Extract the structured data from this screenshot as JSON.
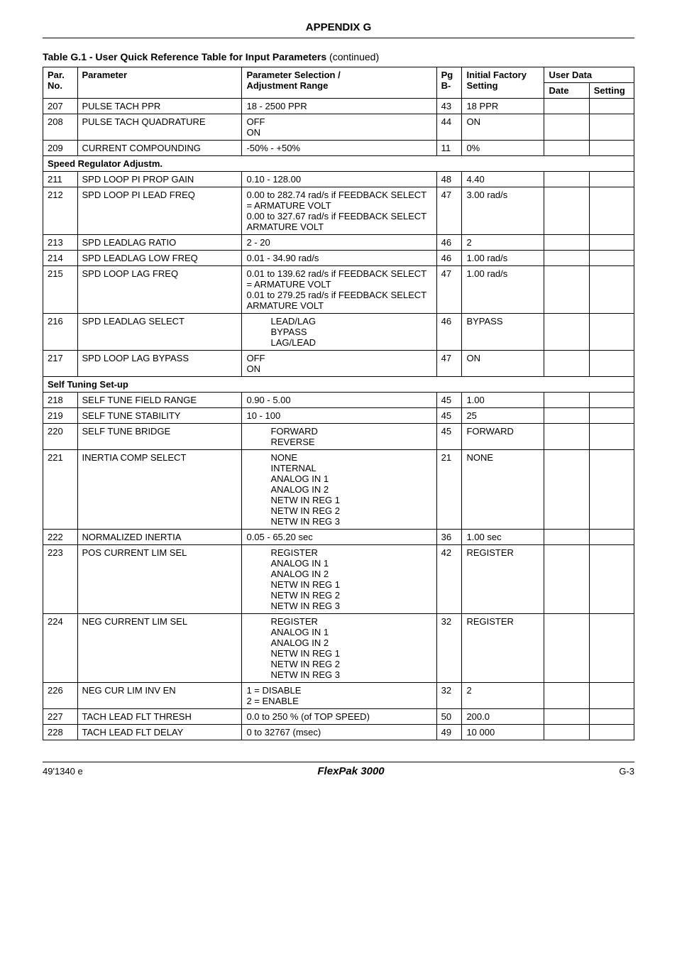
{
  "header": {
    "appendix": "APPENDIX G"
  },
  "caption": {
    "bold": "Table G.1 - User Quick Reference Table for Input Parameters",
    "cont": " (continued)"
  },
  "table": {
    "headers": {
      "parno_l1": "Par.",
      "parno_l2": "No.",
      "param": "Parameter",
      "sel_l1": "Parameter Selection /",
      "sel_l2": "Adjustment Range",
      "pg_l1": "Pg",
      "pg_l2": "B-",
      "init_l1": "Initial Factory",
      "init_l2": "Setting",
      "user_data": "User  Data",
      "date": "Date",
      "setting": "Setting"
    },
    "sections": {
      "s1": "Speed Regulator Adjustm.",
      "s2": "Self Tuning Set-up"
    },
    "rows": [
      {
        "no": "207",
        "param": "PULSE TACH PPR",
        "sel": "18 - 2500 PPR",
        "pg": "43",
        "init": "18 PPR"
      },
      {
        "no": "208",
        "param": "PULSE TACH QUADRATURE",
        "sel": "OFF\nON",
        "pg": "44",
        "init": "ON"
      },
      {
        "no": "209",
        "param": "CURRENT COMPOUNDING",
        "sel": "-50% - +50%",
        "pg": "11",
        "init": "0%"
      },
      {
        "section": "s1"
      },
      {
        "no": "211",
        "param": "SPD LOOP PI PROP GAIN",
        "sel": "0.10 - 128.00",
        "pg": "48",
        "init": "4.40"
      },
      {
        "no": "212",
        "param": "SPD LOOP PI LEAD FREQ",
        "sel": "0.00 to 282.74 rad/s if FEEDBACK SELECT = ARMATURE VOLT\n0.00 to 327.67 rad/s if FEEDBACK SELECT   ARMATURE VOLT",
        "pg": "47",
        "init": "3.00 rad/s"
      },
      {
        "no": "213",
        "param": "SPD LEADLAG RATIO",
        "sel": "2 - 20",
        "pg": "46",
        "init": "2"
      },
      {
        "no": "214",
        "param": "SPD LEADLAG LOW FREQ",
        "sel": "0.01 - 34.90 rad/s",
        "pg": "46",
        "init": "1.00 rad/s"
      },
      {
        "no": "215",
        "param": "SPD LOOP LAG FREQ",
        "sel": "0.01 to 139.62 rad/s if FEEDBACK SELECT = ARMATURE VOLT\n0.01 to 279.25 rad/s if FEEDBACK SELECT   ARMATURE VOLT",
        "pg": "47",
        "init": "1.00 rad/s"
      },
      {
        "no": "216",
        "param": "SPD LEADLAG SELECT",
        "sel": "LEAD/LAG\nBYPASS\nLAG/LEAD",
        "pg": "46",
        "init": "BYPASS",
        "sel_indent": true
      },
      {
        "no": "217",
        "param": "SPD LOOP LAG BYPASS",
        "sel": "OFF\nON",
        "pg": "47",
        "init": "ON"
      },
      {
        "section": "s2"
      },
      {
        "no": "218",
        "param": "SELF TUNE FIELD RANGE",
        "sel": "0.90 - 5.00",
        "pg": "45",
        "init": "1.00"
      },
      {
        "no": "219",
        "param": "SELF TUNE STABILITY",
        "sel": "10 - 100",
        "pg": "45",
        "init": "25"
      },
      {
        "no": "220",
        "param": "SELF TUNE BRIDGE",
        "sel": "FORWARD\nREVERSE",
        "pg": "45",
        "init": "FORWARD",
        "sel_indent": true
      },
      {
        "no": "221",
        "param": "INERTIA COMP SELECT",
        "sel": "NONE\nINTERNAL\nANALOG IN 1\nANALOG IN 2\nNETW IN REG 1\nNETW IN REG 2\nNETW IN REG 3",
        "pg": "21",
        "init": "NONE",
        "sel_indent": true
      },
      {
        "no": "222",
        "param": "NORMALIZED INERTIA",
        "sel": "0.05 - 65.20 sec",
        "pg": "36",
        "init": "1.00 sec"
      },
      {
        "no": "223",
        "param": "POS CURRENT LIM SEL",
        "sel": "REGISTER\nANALOG IN 1\nANALOG IN 2\nNETW IN REG 1\nNETW IN REG 2\nNETW IN REG 3",
        "pg": "42",
        "init": "REGISTER",
        "sel_indent": true
      },
      {
        "no": "224",
        "param": "NEG CURRENT LIM SEL",
        "sel": "REGISTER\nANALOG IN 1\nANALOG IN 2\nNETW IN REG 1\nNETW IN REG 2\nNETW IN REG 3",
        "pg": "32",
        "init": "REGISTER",
        "sel_indent": true
      },
      {
        "no": "226",
        "param": "NEG CUR LIM INV EN",
        "sel": "1 = DISABLE\n2 = ENABLE",
        "pg": "32",
        "init": "2"
      },
      {
        "no": "227",
        "param": "TACH LEAD FLT THRESH",
        "sel": "0.0 to 250 % (of TOP SPEED)",
        "pg": "50",
        "init": "200.0"
      },
      {
        "no": "228",
        "param": "TACH LEAD FLT DELAY",
        "sel": "0 to 32767 (msec)",
        "pg": "49",
        "init": "10 000"
      }
    ]
  },
  "footer": {
    "left": "49'1340 e",
    "mid": "FlexPak 3000",
    "right": "G-3"
  }
}
